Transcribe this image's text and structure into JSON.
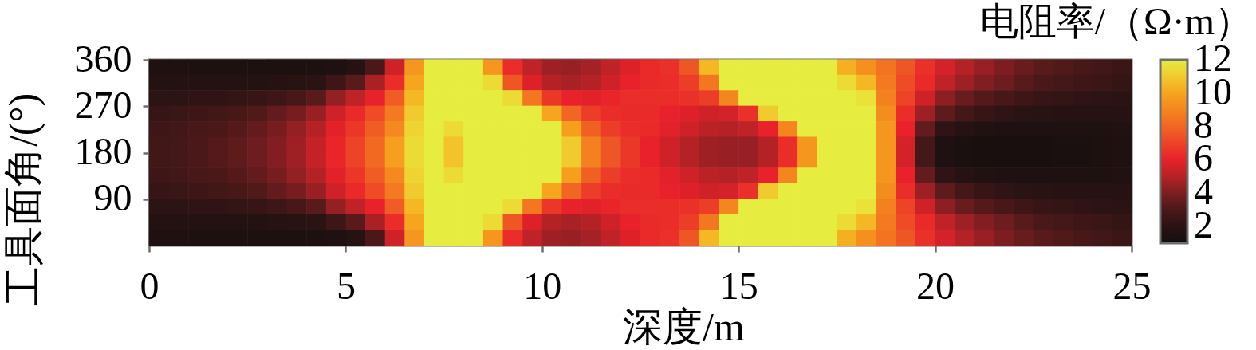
{
  "chart_data": {
    "type": "heatmap",
    "xlabel": "深度/m",
    "ylabel": "工具面角/(°)",
    "clabel": "电阻率/（Ω·m）",
    "x": [
      0.25,
      0.75,
      1.25,
      1.75,
      2.25,
      2.75,
      3.25,
      3.75,
      4.25,
      4.75,
      5.25,
      5.75,
      6.25,
      6.75,
      7.25,
      7.75,
      8.25,
      8.75,
      9.25,
      9.75,
      10.25,
      10.75,
      11.25,
      11.75,
      12.25,
      12.75,
      13.25,
      13.75,
      14.25,
      14.75,
      15.25,
      15.75,
      16.25,
      16.75,
      17.25,
      17.75,
      18.25,
      18.75,
      19.25,
      19.75,
      20.25,
      20.75,
      21.25,
      21.75,
      22.25,
      22.75,
      23.25,
      23.75,
      24.25,
      24.75
    ],
    "cells": [
      [
        1.5,
        1.5,
        1.4,
        1.4,
        1.4,
        1.4,
        1.4,
        1.4,
        1.4,
        1.5,
        1.8,
        3.0,
        5.5,
        9.5,
        12,
        12,
        12,
        9.5,
        6.3,
        5.2,
        4.6,
        4.5,
        4.7,
        5.2,
        5.8,
        6.2,
        6.4,
        7.5,
        10.5,
        12,
        12,
        12,
        12,
        12,
        12,
        10.3,
        9.3,
        8.4,
        7.5,
        6.4,
        5.6,
        5.0,
        4.5,
        4.0,
        3.6,
        3.3,
        3.1,
        2.9,
        2.7,
        2.5
      ],
      [
        1.7,
        1.7,
        1.7,
        1.7,
        1.7,
        1.7,
        1.8,
        1.9,
        2.0,
        2.6,
        3.3,
        4.8,
        6.3,
        10,
        12,
        12,
        12,
        11.5,
        7.5,
        5.8,
        5.0,
        4.8,
        5.0,
        5.5,
        6.0,
        6.2,
        6.3,
        6.8,
        8.5,
        12,
        12,
        12,
        12,
        12,
        12,
        11.5,
        10.5,
        8.6,
        7.2,
        6.2,
        5.2,
        4.6,
        4.1,
        3.7,
        3.3,
        3.0,
        2.8,
        2.6,
        2.5,
        2.3
      ],
      [
        2.1,
        2.1,
        2.2,
        2.2,
        2.3,
        2.4,
        2.6,
        2.9,
        3.3,
        4.4,
        5.2,
        6.0,
        7.7,
        10.5,
        12,
        12,
        12,
        12,
        11.5,
        8.5,
        6.6,
        6.0,
        5.9,
        6.1,
        6.3,
        6.3,
        6.3,
        6.4,
        6.8,
        9,
        12,
        12,
        12,
        12,
        12,
        12,
        11.7,
        8.8,
        7.0,
        5.5,
        4.3,
        3.6,
        3.2,
        2.9,
        2.6,
        2.4,
        2.3,
        2.2,
        2.1,
        2.0
      ],
      [
        2.4,
        2.5,
        2.6,
        2.7,
        2.9,
        3.1,
        3.5,
        3.9,
        4.5,
        5.5,
        6.2,
        7.2,
        8.6,
        11,
        12,
        12,
        12,
        12,
        12,
        12,
        10,
        8.0,
        6.8,
        6.3,
        6.2,
        6.2,
        6.0,
        5.8,
        5.5,
        5.6,
        6.4,
        11,
        12,
        12,
        12,
        12,
        12,
        9.2,
        6.3,
        4.6,
        3.4,
        2.8,
        2.4,
        2.2,
        2.0,
        1.9,
        1.8,
        1.8,
        1.8,
        1.8
      ],
      [
        2.6,
        2.7,
        2.9,
        3.0,
        3.2,
        3.5,
        3.9,
        4.4,
        5.0,
        5.9,
        6.6,
        7.7,
        9.1,
        11.3,
        12,
        11.5,
        12,
        12,
        12,
        12,
        12,
        9.8,
        7.8,
        6.8,
        6.3,
        6.2,
        5.9,
        5.5,
        5.1,
        5.0,
        5.2,
        6.0,
        9,
        12,
        12,
        12,
        12,
        9.5,
        6.0,
        3.5,
        2.2,
        1.8,
        1.6,
        1.5,
        1.5,
        1.5,
        1.5,
        1.5,
        1.5,
        1.6
      ],
      [
        2.7,
        2.8,
        3.0,
        3.2,
        3.4,
        3.7,
        4.1,
        4.6,
        5.3,
        6.1,
        7.0,
        8.1,
        9.8,
        11.5,
        12,
        10.8,
        12,
        12,
        12,
        12,
        12,
        11,
        8.8,
        7.5,
        6.6,
        6.0,
        5.5,
        5.0,
        4.6,
        4.5,
        4.5,
        5.0,
        6.3,
        9.5,
        12,
        12,
        12,
        9.5,
        5.6,
        2.8,
        1.5,
        1.3,
        1.2,
        1.2,
        1.2,
        1.2,
        1.3,
        1.3,
        1.4,
        1.5
      ],
      [
        2.7,
        2.8,
        3.0,
        3.2,
        3.4,
        3.7,
        4.1,
        4.6,
        5.3,
        6.1,
        7.0,
        8.1,
        9.8,
        11.5,
        12,
        10.8,
        12,
        12,
        12,
        12,
        12,
        11,
        8.8,
        7.5,
        6.6,
        6.0,
        5.5,
        5.0,
        4.6,
        4.5,
        4.5,
        5.0,
        6.3,
        9.5,
        12,
        12,
        12,
        9.5,
        5.6,
        2.8,
        1.5,
        1.3,
        1.2,
        1.2,
        1.2,
        1.2,
        1.3,
        1.3,
        1.4,
        1.5
      ],
      [
        2.6,
        2.7,
        2.9,
        3.0,
        3.2,
        3.5,
        3.9,
        4.4,
        5.0,
        5.9,
        6.6,
        7.7,
        9.1,
        11.3,
        12,
        11.5,
        12,
        12,
        12,
        12,
        12,
        9.8,
        7.8,
        6.8,
        6.3,
        6.2,
        5.9,
        5.5,
        5.1,
        5.0,
        5.2,
        6.0,
        9,
        12,
        12,
        12,
        12,
        9.5,
        6.0,
        3.5,
        2.2,
        1.8,
        1.6,
        1.5,
        1.5,
        1.5,
        1.5,
        1.5,
        1.5,
        1.6
      ],
      [
        2.4,
        2.5,
        2.6,
        2.7,
        2.9,
        3.1,
        3.5,
        3.9,
        4.5,
        5.5,
        6.2,
        7.2,
        8.6,
        11,
        12,
        12,
        12,
        12,
        12,
        12,
        10,
        8.0,
        6.8,
        6.3,
        6.2,
        6.2,
        6.0,
        5.8,
        5.5,
        5.6,
        6.4,
        11,
        12,
        12,
        12,
        12,
        12,
        9.2,
        6.3,
        4.6,
        3.4,
        2.8,
        2.4,
        2.2,
        2.0,
        1.9,
        1.8,
        1.8,
        1.8,
        1.8
      ],
      [
        2.1,
        2.1,
        2.2,
        2.2,
        2.3,
        2.4,
        2.6,
        2.9,
        3.3,
        4.4,
        5.2,
        6.0,
        7.7,
        10.5,
        12,
        12,
        12,
        12,
        11.5,
        8.5,
        6.6,
        6.0,
        5.9,
        6.1,
        6.3,
        6.3,
        6.3,
        6.4,
        6.8,
        9,
        12,
        12,
        12,
        12,
        12,
        12,
        11.7,
        8.8,
        7.0,
        5.5,
        4.3,
        3.6,
        3.2,
        2.9,
        2.6,
        2.4,
        2.3,
        2.2,
        2.1,
        2.0
      ],
      [
        1.7,
        1.7,
        1.7,
        1.7,
        1.7,
        1.7,
        1.8,
        1.9,
        2.0,
        2.6,
        3.3,
        4.8,
        6.3,
        10,
        12,
        12,
        12,
        11.5,
        7.5,
        5.8,
        5.0,
        4.8,
        5.0,
        5.5,
        6.0,
        6.2,
        6.3,
        6.8,
        8.5,
        12,
        12,
        12,
        12,
        12,
        12,
        11.5,
        10.5,
        8.6,
        7.2,
        6.2,
        5.2,
        4.6,
        4.1,
        3.7,
        3.3,
        3.0,
        2.8,
        2.6,
        2.5,
        2.3
      ],
      [
        1.5,
        1.5,
        1.4,
        1.4,
        1.4,
        1.4,
        1.4,
        1.4,
        1.4,
        1.5,
        1.8,
        3.0,
        5.5,
        9.5,
        12,
        12,
        12,
        9.5,
        6.3,
        5.2,
        4.6,
        4.5,
        4.7,
        5.2,
        5.8,
        6.2,
        6.4,
        7.5,
        10.5,
        12,
        12,
        12,
        12,
        12,
        12,
        10.3,
        9.3,
        8.4,
        7.5,
        6.4,
        5.6,
        5.0,
        4.5,
        4.0,
        3.6,
        3.3,
        3.1,
        2.9,
        2.7,
        2.5
      ]
    ],
    "xlim": [
      0,
      25
    ],
    "xticks": [
      0,
      5,
      10,
      15,
      20,
      25
    ],
    "ylim": [
      0,
      360
    ],
    "yticks": [
      90,
      180,
      270,
      360
    ],
    "clim": [
      1,
      12
    ],
    "cticks": [
      2,
      4,
      6,
      8,
      10,
      12
    ]
  }
}
